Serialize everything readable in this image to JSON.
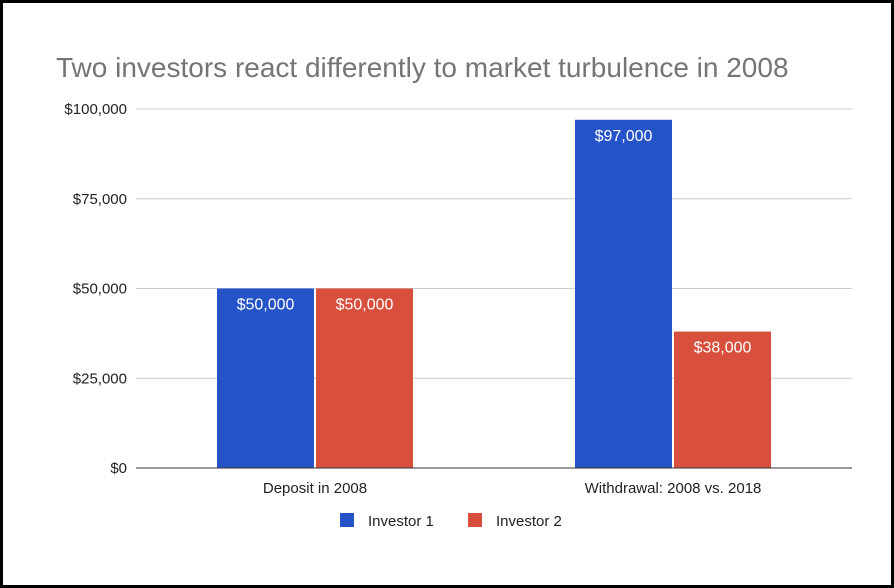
{
  "chart_data": {
    "type": "bar",
    "title": "Two investors react differently to market turbulence in 2008",
    "categories": [
      "Deposit in 2008",
      "Withdrawal: 2008 vs. 2018"
    ],
    "series": [
      {
        "name": "Investor 1",
        "values": [
          50000,
          97000
        ],
        "color": "#2553c8",
        "labels": [
          "$50,000",
          "$97,000"
        ]
      },
      {
        "name": "Investor 2",
        "values": [
          50000,
          38000
        ],
        "color": "#d94f3d",
        "labels": [
          "$50,000",
          "$38,000"
        ]
      }
    ],
    "ylim": [
      0,
      100000
    ],
    "yticks": [
      0,
      25000,
      50000,
      75000,
      100000
    ],
    "ytick_labels": [
      "$0",
      "$25,000",
      "$50,000",
      "$75,000",
      "$100,000"
    ],
    "grid": true,
    "legend": "bottom",
    "xlabel": "",
    "ylabel": ""
  }
}
